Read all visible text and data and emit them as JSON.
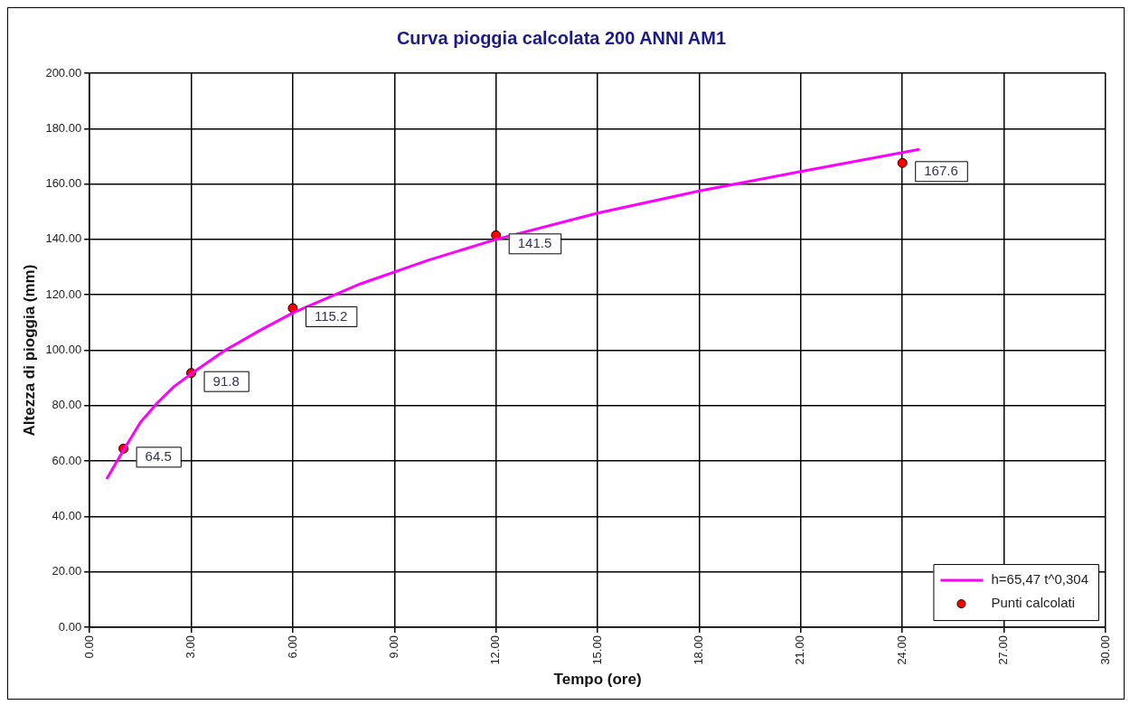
{
  "chart_data": {
    "type": "line",
    "title": "Curva pioggia calcolata 200 ANNI AM1",
    "xlabel": "Tempo (ore)",
    "ylabel": "Altezza di pioggia (mm)",
    "xlim": [
      0,
      30
    ],
    "xticks": [
      {
        "value": 0,
        "label": "0.00"
      },
      {
        "value": 3,
        "label": "3.00"
      },
      {
        "value": 6,
        "label": "6.00"
      },
      {
        "value": 9,
        "label": "9.00"
      },
      {
        "value": 12,
        "label": "12.00"
      },
      {
        "value": 15,
        "label": "15.00"
      },
      {
        "value": 18,
        "label": "18.00"
      },
      {
        "value": 21,
        "label": "21.00"
      },
      {
        "value": 24,
        "label": "24.00"
      },
      {
        "value": 27,
        "label": "27.00"
      },
      {
        "value": 30,
        "label": "30.00"
      }
    ],
    "ylim": [
      0,
      200
    ],
    "yticks": [
      {
        "value": 0,
        "label": "0.00"
      },
      {
        "value": 20,
        "label": "20.00"
      },
      {
        "value": 40,
        "label": "40.00"
      },
      {
        "value": 60,
        "label": "60.00"
      },
      {
        "value": 80,
        "label": "80.00"
      },
      {
        "value": 100,
        "label": "100.00"
      },
      {
        "value": 120,
        "label": "120.00"
      },
      {
        "value": 140,
        "label": "140.00"
      },
      {
        "value": 160,
        "label": "160.00"
      },
      {
        "value": 180,
        "label": "180.00"
      },
      {
        "value": 200,
        "label": "200.00"
      }
    ],
    "grid": true,
    "legend": "bottom right",
    "series": [
      {
        "name": "h=65,47 t^0,304",
        "color": "#ff00ff",
        "marker": "none",
        "x": [
          0.5,
          1,
          1.5,
          2,
          2.5,
          3,
          4,
          5,
          6,
          8,
          10,
          12,
          15,
          18,
          21,
          24.5
        ],
        "values": [
          53.5,
          64,
          74,
          81,
          87,
          91.5,
          100,
          107,
          113.5,
          124,
          132.5,
          140,
          149.5,
          157.5,
          164.5,
          172.5
        ]
      },
      {
        "name": "Punti calcolati",
        "type": "scatter",
        "color": "#ff0000",
        "marker": "circle",
        "x": [
          1,
          3,
          6,
          12,
          24
        ],
        "values": [
          64.5,
          91.8,
          115.2,
          141.5,
          167.6
        ],
        "value_labels": [
          "64.5",
          "91.8",
          "115.2",
          "141.5",
          "167.6"
        ]
      }
    ]
  }
}
